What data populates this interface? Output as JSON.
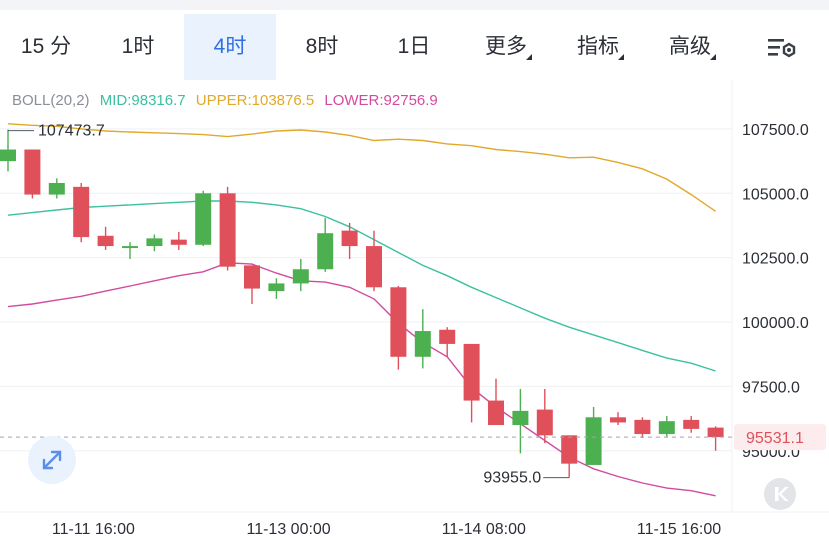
{
  "tabs": [
    {
      "label": "15 分",
      "active": false
    },
    {
      "label": "1时",
      "active": false
    },
    {
      "label": "4时",
      "active": true
    },
    {
      "label": "8时",
      "active": false
    },
    {
      "label": "1日",
      "active": false
    },
    {
      "label": "更多",
      "active": false,
      "dropdown": true
    },
    {
      "label": "指标",
      "active": false,
      "dropdown": true
    },
    {
      "label": "高级",
      "active": false,
      "dropdown": true
    }
  ],
  "settings_icon": "chart-settings-icon",
  "legend": {
    "boll": "BOLL(20,2)",
    "mid": "MID:98316.7",
    "upper": "UPPER:103876.5",
    "lower": "LOWER:92756.9"
  },
  "colors": {
    "up": "#4caf50",
    "down": "#e0505a",
    "mid": "#3cc0a0",
    "upper": "#e0a92a",
    "lower": "#d24b9f",
    "active_tab": "#2f6fe4",
    "price_label": "#e0505a"
  },
  "chart_data": {
    "type": "candlestick",
    "indicator": "BOLL(20,2)",
    "ylim": [
      92700,
      109400
    ],
    "y_ticks": [
      {
        "value": 107500,
        "label": "107500.0"
      },
      {
        "value": 105000,
        "label": "105000.0"
      },
      {
        "value": 102500,
        "label": "102500.0"
      },
      {
        "value": 100000,
        "label": "100000.0"
      },
      {
        "value": 97500,
        "label": "97500.0"
      },
      {
        "value": 95000,
        "label": "95000.0"
      }
    ],
    "x_ticks": [
      {
        "index": 3.5,
        "label": "11-11 16:00"
      },
      {
        "index": 11.5,
        "label": "11-13 00:00"
      },
      {
        "index": 19.5,
        "label": "11-14 08:00"
      },
      {
        "index": 27.5,
        "label": "11-15 16:00"
      }
    ],
    "candles": [
      {
        "o": 106250,
        "c": 106700,
        "h": 107473.7,
        "l": 105850
      },
      {
        "o": 106700,
        "c": 104950,
        "h": 106700,
        "l": 104800
      },
      {
        "o": 104950,
        "c": 105400,
        "h": 105580,
        "l": 104800
      },
      {
        "o": 105250,
        "c": 103300,
        "h": 105400,
        "l": 103100
      },
      {
        "o": 103350,
        "c": 102950,
        "h": 103700,
        "l": 102800
      },
      {
        "o": 102950,
        "c": 102950,
        "h": 103100,
        "l": 102450
      },
      {
        "o": 102950,
        "c": 103250,
        "h": 103400,
        "l": 102750
      },
      {
        "o": 103200,
        "c": 103000,
        "h": 103500,
        "l": 102800
      },
      {
        "o": 103000,
        "c": 105000,
        "h": 105100,
        "l": 102950
      },
      {
        "o": 105000,
        "c": 102150,
        "h": 105250,
        "l": 102000
      },
      {
        "o": 102200,
        "c": 101300,
        "h": 102200,
        "l": 100700
      },
      {
        "o": 101200,
        "c": 101500,
        "h": 101700,
        "l": 100900
      },
      {
        "o": 101500,
        "c": 102050,
        "h": 102450,
        "l": 101200
      },
      {
        "o": 102050,
        "c": 103450,
        "h": 104050,
        "l": 101950
      },
      {
        "o": 103550,
        "c": 102950,
        "h": 103850,
        "l": 102450
      },
      {
        "o": 102950,
        "c": 101350,
        "h": 103550,
        "l": 101200
      },
      {
        "o": 101350,
        "c": 98650,
        "h": 101400,
        "l": 98150
      },
      {
        "o": 98650,
        "c": 99650,
        "h": 100500,
        "l": 98200
      },
      {
        "o": 99700,
        "c": 99150,
        "h": 99800,
        "l": 98650
      },
      {
        "o": 99150,
        "c": 96950,
        "h": 99150,
        "l": 96100
      },
      {
        "o": 96950,
        "c": 96000,
        "h": 97800,
        "l": 96000
      },
      {
        "o": 96000,
        "c": 96550,
        "h": 97400,
        "l": 94900
      },
      {
        "o": 96600,
        "c": 95600,
        "h": 97400,
        "l": 95300
      },
      {
        "o": 95600,
        "c": 94500,
        "h": 95600,
        "l": 93955.0
      },
      {
        "o": 94450,
        "c": 96300,
        "h": 96700,
        "l": 94450
      },
      {
        "o": 96300,
        "c": 96100,
        "h": 96500,
        "l": 96000
      },
      {
        "o": 96200,
        "c": 95650,
        "h": 96300,
        "l": 95500
      },
      {
        "o": 95650,
        "c": 96150,
        "h": 96350,
        "l": 95550
      },
      {
        "o": 96200,
        "c": 95850,
        "h": 96350,
        "l": 95700
      },
      {
        "o": 95900,
        "c": 95531.1,
        "h": 95950,
        "l": 95000
      }
    ],
    "upper": [
      107700,
      107640,
      107600,
      107500,
      107420,
      107380,
      107350,
      107320,
      107280,
      107200,
      107300,
      107420,
      107460,
      107380,
      107250,
      107050,
      107100,
      107050,
      106920,
      106850,
      106700,
      106620,
      106520,
      106380,
      106400,
      106200,
      105950,
      105550,
      104950,
      104300
    ],
    "mid": [
      104150,
      104250,
      104350,
      104450,
      104500,
      104550,
      104600,
      104650,
      104700,
      104700,
      104650,
      104550,
      104400,
      104100,
      103700,
      103200,
      102700,
      102200,
      101800,
      101350,
      100950,
      100550,
      100150,
      99800,
      99500,
      99200,
      98900,
      98600,
      98400,
      98100
    ],
    "lower": [
      100600,
      100700,
      100850,
      101000,
      101200,
      101400,
      101600,
      101800,
      101950,
      102300,
      102250,
      101900,
      101600,
      101550,
      101350,
      100900,
      99950,
      99200,
      98650,
      97450,
      96700,
      96050,
      95400,
      94750,
      94300,
      94000,
      93750,
      93550,
      93450,
      93250
    ],
    "labels": {
      "high": "107473.7",
      "low": "93955.0"
    },
    "current_price": 95531.1,
    "current_price_label": "95531.1"
  }
}
